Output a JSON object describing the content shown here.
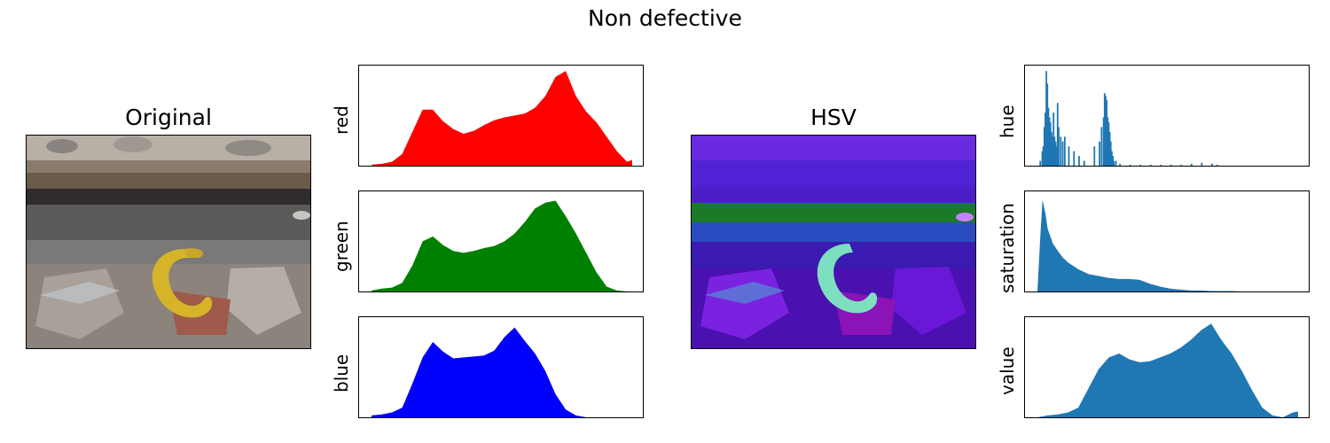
{
  "suptitle": "Non defective",
  "panels": {
    "original_title": "Original",
    "hsv_title": "HSV"
  },
  "chart_data": [
    {
      "type": "area",
      "ylabel": "red",
      "color": "#ff0000",
      "x": [
        0,
        10,
        20,
        30,
        40,
        50,
        60,
        70,
        80,
        90,
        100,
        110,
        120,
        130,
        140,
        150,
        160,
        170,
        180,
        190,
        200,
        210,
        220,
        230,
        240,
        250,
        255
      ],
      "values": [
        0.01,
        0.02,
        0.04,
        0.12,
        0.35,
        0.58,
        0.58,
        0.46,
        0.38,
        0.33,
        0.36,
        0.42,
        0.47,
        0.5,
        0.52,
        0.54,
        0.6,
        0.72,
        0.92,
        0.98,
        0.72,
        0.56,
        0.45,
        0.3,
        0.15,
        0.04,
        0.06
      ]
    },
    {
      "type": "area",
      "ylabel": "green",
      "color": "#008000",
      "x": [
        0,
        10,
        20,
        30,
        40,
        50,
        60,
        70,
        80,
        90,
        100,
        110,
        120,
        130,
        140,
        150,
        160,
        170,
        180,
        190,
        200,
        210,
        220,
        230,
        240,
        250,
        255
      ],
      "values": [
        0.01,
        0.03,
        0.04,
        0.09,
        0.27,
        0.52,
        0.57,
        0.48,
        0.42,
        0.4,
        0.42,
        0.45,
        0.47,
        0.52,
        0.6,
        0.72,
        0.86,
        0.92,
        0.94,
        0.78,
        0.6,
        0.4,
        0.2,
        0.05,
        0.01,
        0.0,
        0.0
      ]
    },
    {
      "type": "area",
      "ylabel": "blue",
      "color": "#0000ff",
      "x": [
        0,
        10,
        20,
        30,
        40,
        50,
        60,
        70,
        80,
        90,
        100,
        110,
        120,
        130,
        140,
        150,
        160,
        170,
        180,
        190,
        200,
        210,
        220,
        230,
        240,
        250,
        255
      ],
      "values": [
        0.02,
        0.03,
        0.05,
        0.1,
        0.35,
        0.62,
        0.78,
        0.68,
        0.61,
        0.62,
        0.63,
        0.64,
        0.69,
        0.83,
        0.93,
        0.79,
        0.66,
        0.48,
        0.24,
        0.08,
        0.02,
        0.0,
        0.0,
        0.0,
        0.0,
        0.0,
        0.0
      ]
    },
    {
      "type": "bar",
      "ylabel": "hue",
      "color": "#1f77b4",
      "x": [
        2,
        4,
        5,
        6,
        7,
        8,
        9,
        10,
        11,
        12,
        13,
        14,
        15,
        16,
        17,
        18,
        19,
        20,
        22,
        24,
        26,
        30,
        35,
        40,
        45,
        55,
        60,
        62,
        64,
        65,
        66,
        67,
        68,
        69,
        70,
        71,
        72,
        73,
        74,
        76,
        80,
        90,
        100,
        110,
        120,
        130,
        140,
        150,
        160,
        170,
        175
      ],
      "values": [
        0.05,
        0.15,
        0.2,
        0.4,
        0.55,
        0.98,
        0.85,
        0.6,
        0.5,
        0.45,
        0.35,
        0.3,
        0.55,
        0.3,
        0.25,
        0.2,
        0.65,
        0.4,
        0.3,
        0.25,
        0.3,
        0.2,
        0.15,
        0.1,
        0.05,
        0.2,
        0.25,
        0.4,
        0.5,
        0.75,
        0.72,
        0.68,
        0.5,
        0.45,
        0.35,
        0.25,
        0.15,
        0.1,
        0.05,
        0.05,
        0.02,
        0.01,
        0.01,
        0.01,
        0.01,
        0.01,
        0.01,
        0.02,
        0.03,
        0.02,
        0.01
      ]
    },
    {
      "type": "area",
      "ylabel": "saturation",
      "color": "#1f77b4",
      "x": [
        0,
        3,
        5,
        8,
        10,
        15,
        20,
        25,
        30,
        40,
        50,
        60,
        70,
        80,
        90,
        100,
        110,
        120,
        130,
        140,
        150,
        160,
        170,
        180,
        190,
        200,
        255
      ],
      "values": [
        0.0,
        0.6,
        0.95,
        0.8,
        0.65,
        0.5,
        0.42,
        0.35,
        0.3,
        0.23,
        0.18,
        0.16,
        0.14,
        0.13,
        0.13,
        0.12,
        0.08,
        0.05,
        0.03,
        0.02,
        0.01,
        0.01,
        0.005,
        0.005,
        0.005,
        0.0,
        0.0
      ]
    },
    {
      "type": "area",
      "ylabel": "value",
      "color": "#1f77b4",
      "x": [
        0,
        10,
        20,
        30,
        40,
        50,
        60,
        70,
        80,
        90,
        100,
        110,
        120,
        130,
        140,
        150,
        160,
        170,
        180,
        190,
        200,
        210,
        220,
        230,
        240,
        250,
        255
      ],
      "values": [
        0.0,
        0.02,
        0.03,
        0.05,
        0.1,
        0.3,
        0.5,
        0.62,
        0.66,
        0.6,
        0.57,
        0.58,
        0.62,
        0.66,
        0.72,
        0.8,
        0.9,
        0.97,
        0.8,
        0.66,
        0.48,
        0.28,
        0.1,
        0.02,
        0.0,
        0.05,
        0.06
      ]
    }
  ]
}
